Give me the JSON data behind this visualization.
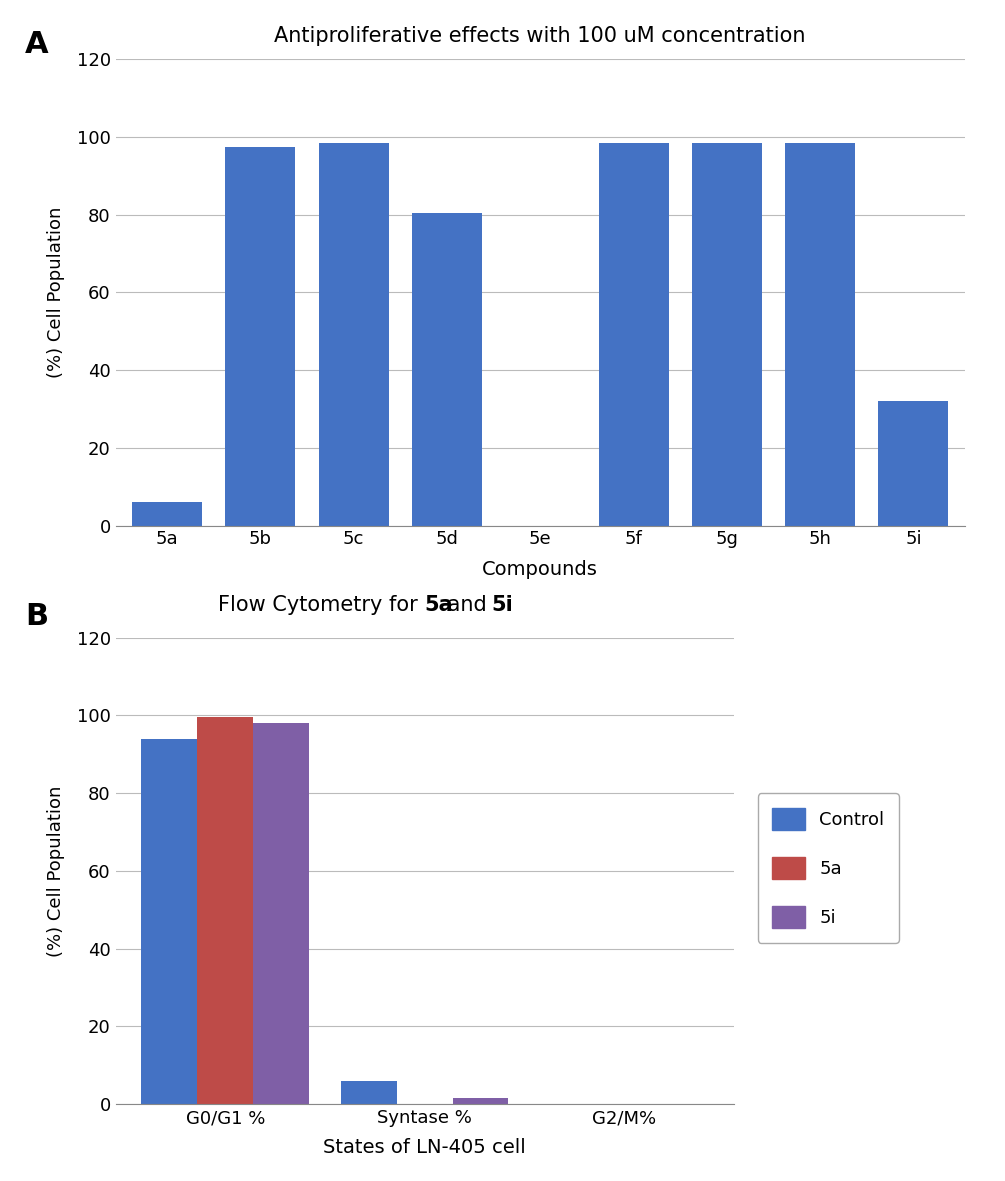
{
  "panel_a": {
    "title": "Antiproliferative effects with 100 uM concentration",
    "categories": [
      "5a",
      "5b",
      "5c",
      "5d",
      "5e",
      "5f",
      "5g",
      "5h",
      "5i"
    ],
    "values": [
      6.0,
      97.5,
      98.5,
      80.5,
      0.0,
      98.5,
      98.5,
      98.5,
      32.0
    ],
    "bar_color": "#4472C4",
    "xlabel": "Compounds",
    "ylabel": "(%) Cell Population",
    "ylim": [
      0,
      120
    ],
    "yticks": [
      0,
      20,
      40,
      60,
      80,
      100,
      120
    ]
  },
  "panel_b": {
    "title_prefix": "Flow Cytometry for ",
    "title_5a": "5a",
    "title_mid": " and ",
    "title_5i": "5i",
    "categories": [
      "G0/G1 %",
      "Syntase %",
      "G2/M%"
    ],
    "series_names": [
      "Control",
      "5a",
      "5i"
    ],
    "series_values": {
      "Control": [
        94.0,
        6.0,
        0.0
      ],
      "5a": [
        99.5,
        0.0,
        0.0
      ],
      "5i": [
        98.0,
        1.5,
        0.0
      ]
    },
    "colors": {
      "Control": "#4472C4",
      "5a": "#BE4B48",
      "5i": "#7F5FA6"
    },
    "xlabel": "States of LN-405 cell",
    "ylabel": "(%) Cell Population",
    "ylim": [
      0,
      120
    ],
    "yticks": [
      0,
      20,
      40,
      60,
      80,
      100,
      120
    ]
  },
  "background_color": "#ffffff",
  "grid_color": "#BBBBBB",
  "spine_color": "#888888"
}
